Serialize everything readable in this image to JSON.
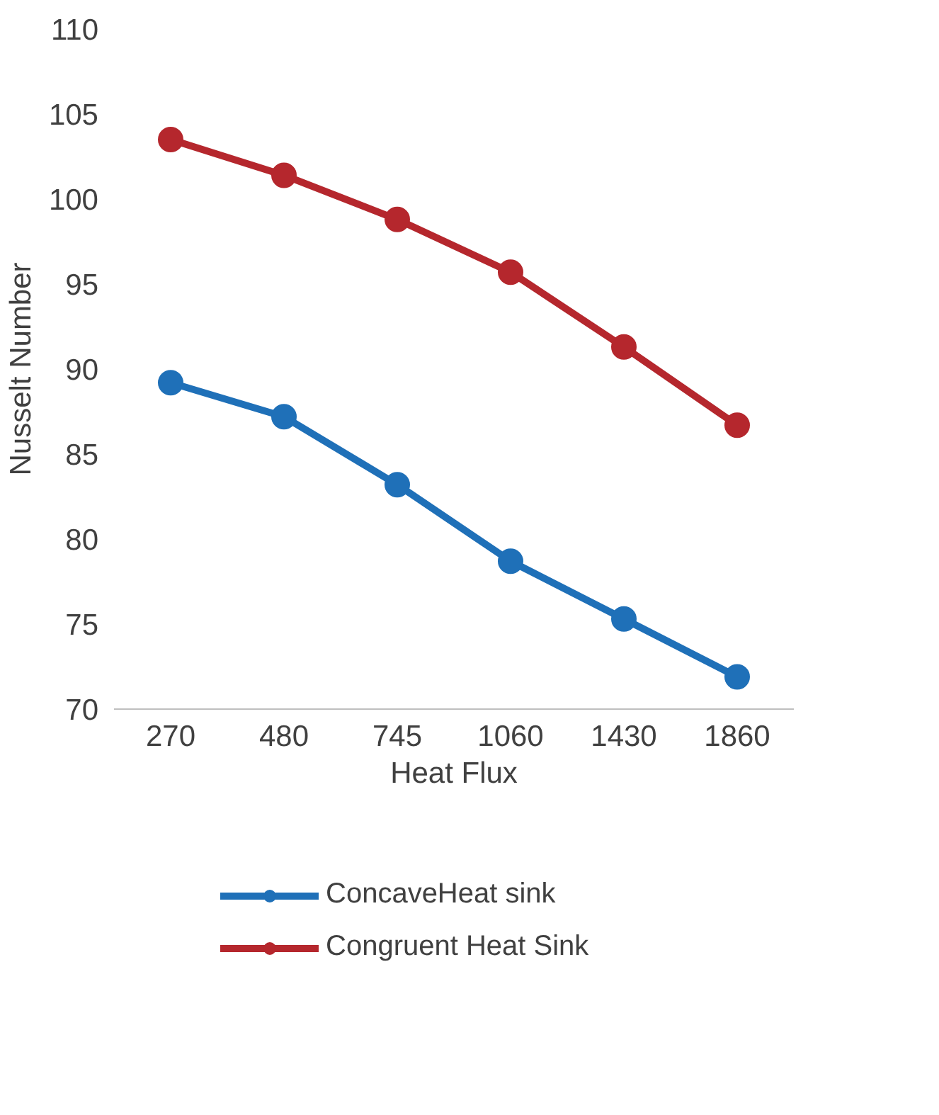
{
  "chart_data": {
    "type": "line",
    "xlabel": "Heat Flux",
    "ylabel": "Nusselt Number",
    "categories": [
      "270",
      "480",
      "745",
      "1060",
      "1430",
      "1860"
    ],
    "series": [
      {
        "name": "ConcaveHeat sink",
        "color": "#1f70b8",
        "values": [
          89.2,
          87.2,
          83.2,
          78.7,
          75.3,
          71.9
        ]
      },
      {
        "name": "Congruent Heat Sink",
        "color": "#b5272d",
        "values": [
          103.5,
          101.4,
          98.8,
          95.7,
          91.3,
          86.7
        ]
      }
    ],
    "ylim": [
      70,
      110
    ],
    "yticks": [
      70,
      75,
      80,
      85,
      90,
      95,
      100,
      105,
      110
    ],
    "grid": false,
    "legend": "bottom",
    "marker": "circle",
    "line_style": "solid"
  }
}
